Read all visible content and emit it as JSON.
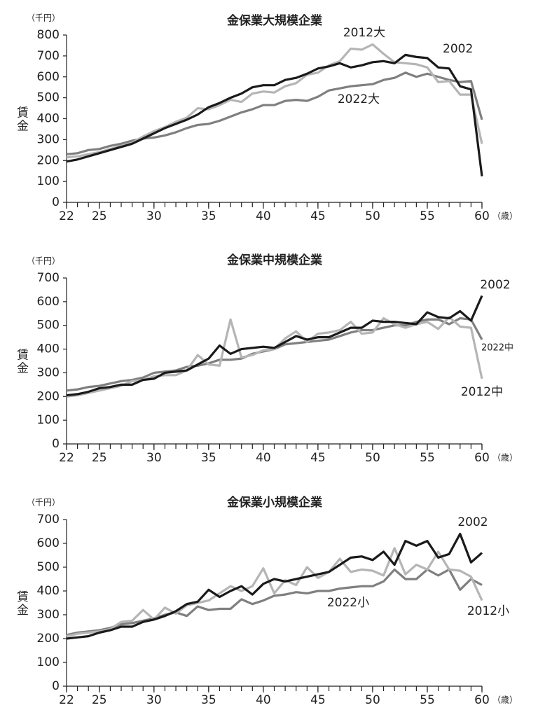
{
  "chart_data": [
    {
      "type": "line",
      "title": "金保業大規模企業",
      "y_unit": "（千円）",
      "y_label": "賃金",
      "x_unit": "（歳）",
      "x": [
        22,
        23,
        24,
        25,
        26,
        27,
        28,
        29,
        30,
        31,
        32,
        33,
        34,
        35,
        36,
        37,
        38,
        39,
        40,
        41,
        42,
        43,
        44,
        45,
        46,
        47,
        48,
        49,
        50,
        51,
        52,
        53,
        54,
        55,
        56,
        57,
        58,
        59,
        60
      ],
      "xlim": [
        22,
        60
      ],
      "xticks": [
        22,
        25,
        30,
        35,
        40,
        45,
        50,
        55,
        60
      ],
      "ylim": [
        0,
        800
      ],
      "yticks": [
        0,
        100,
        200,
        300,
        400,
        500,
        600,
        700,
        800
      ],
      "series": [
        {
          "name": "2002",
          "color": "#1a1a1a",
          "values": [
            195,
            205,
            220,
            235,
            250,
            265,
            280,
            305,
            330,
            355,
            375,
            395,
            420,
            455,
            475,
            500,
            520,
            550,
            560,
            560,
            585,
            595,
            615,
            640,
            650,
            665,
            645,
            655,
            670,
            675,
            665,
            705,
            695,
            690,
            645,
            640,
            555,
            540,
            125
          ]
        },
        {
          "name": "2012大",
          "color": "#b5b5b5",
          "values": [
            215,
            220,
            230,
            240,
            255,
            270,
            285,
            315,
            340,
            360,
            385,
            405,
            450,
            445,
            465,
            490,
            480,
            520,
            530,
            525,
            555,
            570,
            610,
            620,
            655,
            675,
            735,
            730,
            755,
            710,
            670,
            665,
            660,
            645,
            575,
            580,
            515,
            515,
            280
          ]
        },
        {
          "name": "2022大",
          "color": "#7f7f7f",
          "values": [
            230,
            235,
            250,
            255,
            270,
            280,
            295,
            305,
            310,
            320,
            335,
            355,
            370,
            375,
            390,
            410,
            430,
            445,
            465,
            465,
            485,
            490,
            485,
            505,
            535,
            545,
            555,
            560,
            565,
            585,
            595,
            620,
            600,
            615,
            600,
            585,
            575,
            580,
            395
          ]
        }
      ]
    },
    {
      "type": "line",
      "title": "金保業中規模企業",
      "y_unit": "（千円）",
      "y_label": "賃金",
      "x_unit": "（歳）",
      "x": [
        22,
        23,
        24,
        25,
        26,
        27,
        28,
        29,
        30,
        31,
        32,
        33,
        34,
        35,
        36,
        37,
        38,
        39,
        40,
        41,
        42,
        43,
        44,
        45,
        46,
        47,
        48,
        49,
        50,
        51,
        52,
        53,
        54,
        55,
        56,
        57,
        58,
        59,
        60
      ],
      "xlim": [
        22,
        60
      ],
      "xticks": [
        22,
        25,
        30,
        35,
        40,
        45,
        50,
        55,
        60
      ],
      "ylim": [
        0,
        700
      ],
      "yticks": [
        0,
        100,
        200,
        300,
        400,
        500,
        600,
        700
      ],
      "series": [
        {
          "name": "2002",
          "color": "#1a1a1a",
          "values": [
            205,
            210,
            220,
            235,
            240,
            250,
            250,
            270,
            275,
            300,
            305,
            310,
            335,
            360,
            415,
            380,
            400,
            405,
            410,
            405,
            430,
            455,
            440,
            450,
            450,
            470,
            490,
            490,
            520,
            515,
            515,
            510,
            505,
            555,
            535,
            530,
            560,
            520,
            625
          ]
        },
        {
          "name": "2012中",
          "color": "#b5b5b5",
          "values": [
            200,
            205,
            215,
            225,
            235,
            245,
            265,
            270,
            285,
            290,
            290,
            310,
            375,
            335,
            330,
            525,
            365,
            375,
            395,
            400,
            445,
            475,
            430,
            465,
            470,
            480,
            515,
            465,
            470,
            530,
            505,
            490,
            505,
            515,
            485,
            535,
            495,
            490,
            275
          ]
        },
        {
          "name": "2022中",
          "color": "#7f7f7f",
          "values": [
            225,
            230,
            240,
            245,
            255,
            265,
            270,
            280,
            300,
            305,
            310,
            325,
            330,
            340,
            355,
            355,
            360,
            380,
            390,
            400,
            420,
            425,
            430,
            435,
            440,
            455,
            470,
            480,
            480,
            490,
            500,
            500,
            515,
            525,
            525,
            505,
            530,
            525,
            440
          ]
        }
      ]
    },
    {
      "type": "line",
      "title": "金保業小規模企業",
      "y_unit": "（千円）",
      "y_label": "賃金",
      "x_unit": "（歳）",
      "x": [
        22,
        23,
        24,
        25,
        26,
        27,
        28,
        29,
        30,
        31,
        32,
        33,
        34,
        35,
        36,
        37,
        38,
        39,
        40,
        41,
        42,
        43,
        44,
        45,
        46,
        47,
        48,
        49,
        50,
        51,
        52,
        53,
        54,
        55,
        56,
        57,
        58,
        59,
        60
      ],
      "xlim": [
        22,
        60
      ],
      "xticks": [
        22,
        25,
        30,
        35,
        40,
        45,
        50,
        55,
        60
      ],
      "ylim": [
        0,
        700
      ],
      "yticks": [
        0,
        100,
        200,
        300,
        400,
        500,
        600,
        700
      ],
      "series": [
        {
          "name": "2002",
          "color": "#1a1a1a",
          "values": [
            200,
            205,
            210,
            225,
            235,
            250,
            250,
            270,
            280,
            295,
            315,
            345,
            355,
            405,
            375,
            400,
            420,
            385,
            430,
            450,
            440,
            450,
            460,
            470,
            480,
            510,
            540,
            545,
            530,
            565,
            510,
            610,
            590,
            610,
            540,
            555,
            640,
            520,
            560
          ]
        },
        {
          "name": "2012小",
          "color": "#b5b5b5",
          "values": [
            210,
            220,
            225,
            230,
            240,
            270,
            275,
            320,
            280,
            330,
            305,
            340,
            350,
            360,
            390,
            420,
            400,
            420,
            495,
            390,
            445,
            425,
            500,
            455,
            480,
            535,
            480,
            490,
            485,
            465,
            580,
            470,
            510,
            490,
            565,
            490,
            485,
            460,
            360
          ]
        },
        {
          "name": "2022小",
          "color": "#7f7f7f",
          "values": [
            215,
            225,
            230,
            235,
            245,
            260,
            265,
            275,
            285,
            300,
            310,
            295,
            335,
            320,
            325,
            325,
            365,
            345,
            360,
            380,
            385,
            395,
            390,
            400,
            400,
            410,
            415,
            420,
            420,
            440,
            490,
            450,
            450,
            490,
            465,
            490,
            405,
            450,
            425
          ]
        }
      ]
    }
  ]
}
